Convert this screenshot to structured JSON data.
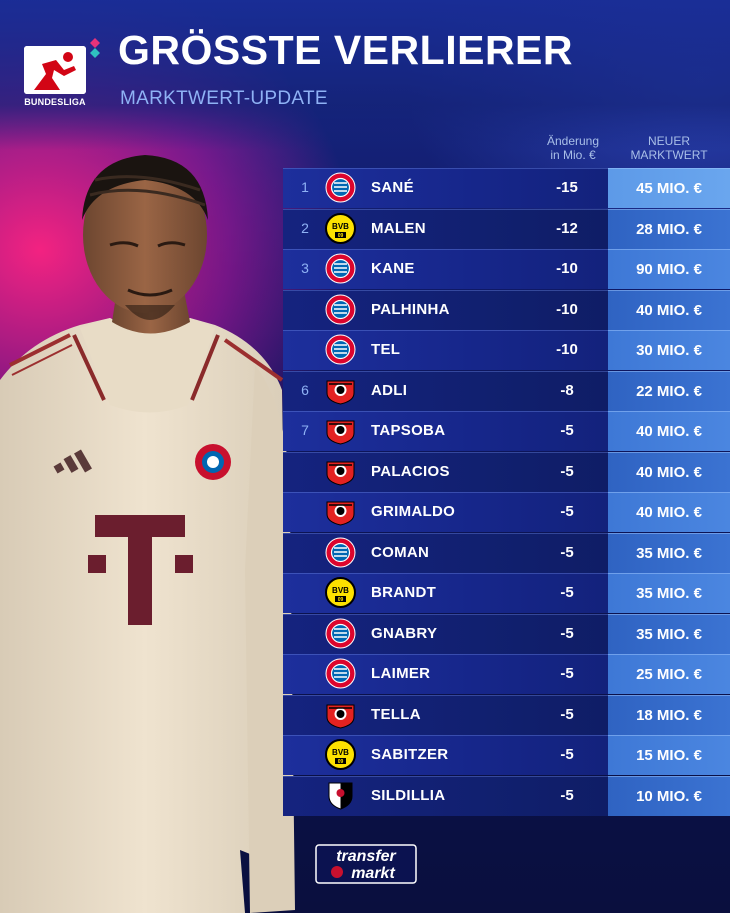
{
  "brand": {
    "league_logo_label": "BUNDESLIGA",
    "colors": {
      "accent": "#8fb2f5",
      "value_cell": "#4b86e0",
      "row": "#16268a",
      "pink_glow": "#ff2382"
    }
  },
  "header": {
    "title": "GRÖSSTE VERLIERER",
    "subtitle": "MARKTWERT-UPDATE",
    "col_change_line1": "Änderung",
    "col_change_line2": "in Mio. €",
    "col_value_line1": "NEUER",
    "col_value_line2": "MARKTWERT"
  },
  "rows": [
    {
      "rank": "1",
      "club_icon": "bayern-crest-icon",
      "name": "SANÉ",
      "change": "-15",
      "value": "45 MIO. €"
    },
    {
      "rank": "2",
      "club_icon": "dortmund-crest-icon",
      "name": "MALEN",
      "change": "-12",
      "value": "28 MIO. €"
    },
    {
      "rank": "3",
      "club_icon": "bayern-crest-icon",
      "name": "KANE",
      "change": "-10",
      "value": "90 MIO. €"
    },
    {
      "rank": "",
      "club_icon": "bayern-crest-icon",
      "name": "PALHINHA",
      "change": "-10",
      "value": "40 MIO. €"
    },
    {
      "rank": "",
      "club_icon": "bayern-crest-icon",
      "name": "TEL",
      "change": "-10",
      "value": "30 MIO. €"
    },
    {
      "rank": "6",
      "club_icon": "leverkusen-crest-icon",
      "name": "ADLI",
      "change": "-8",
      "value": "22 MIO. €"
    },
    {
      "rank": "7",
      "club_icon": "leverkusen-crest-icon",
      "name": "TAPSOBA",
      "change": "-5",
      "value": "40 MIO. €"
    },
    {
      "rank": "",
      "club_icon": "leverkusen-crest-icon",
      "name": "PALACIOS",
      "change": "-5",
      "value": "40 MIO. €"
    },
    {
      "rank": "",
      "club_icon": "leverkusen-crest-icon",
      "name": "GRIMALDO",
      "change": "-5",
      "value": "40 MIO. €"
    },
    {
      "rank": "",
      "club_icon": "bayern-crest-icon",
      "name": "COMAN",
      "change": "-5",
      "value": "35 MIO. €"
    },
    {
      "rank": "",
      "club_icon": "dortmund-crest-icon",
      "name": "BRANDT",
      "change": "-5",
      "value": "35 MIO. €"
    },
    {
      "rank": "",
      "club_icon": "bayern-crest-icon",
      "name": "GNABRY",
      "change": "-5",
      "value": "35 MIO. €"
    },
    {
      "rank": "",
      "club_icon": "bayern-crest-icon",
      "name": "LAIMER",
      "change": "-5",
      "value": "25 MIO. €"
    },
    {
      "rank": "",
      "club_icon": "leverkusen-crest-icon",
      "name": "TELLA",
      "change": "-5",
      "value": "18 MIO. €"
    },
    {
      "rank": "",
      "club_icon": "dortmund-crest-icon",
      "name": "SABITZER",
      "change": "-5",
      "value": "15 MIO. €"
    },
    {
      "rank": "",
      "club_icon": "freiburg-crest-icon",
      "name": "SILDILLIA",
      "change": "-5",
      "value": "10 MIO. €"
    }
  ],
  "footer": {
    "tm_logo_line1": "transfer",
    "tm_logo_line2": "markt"
  }
}
